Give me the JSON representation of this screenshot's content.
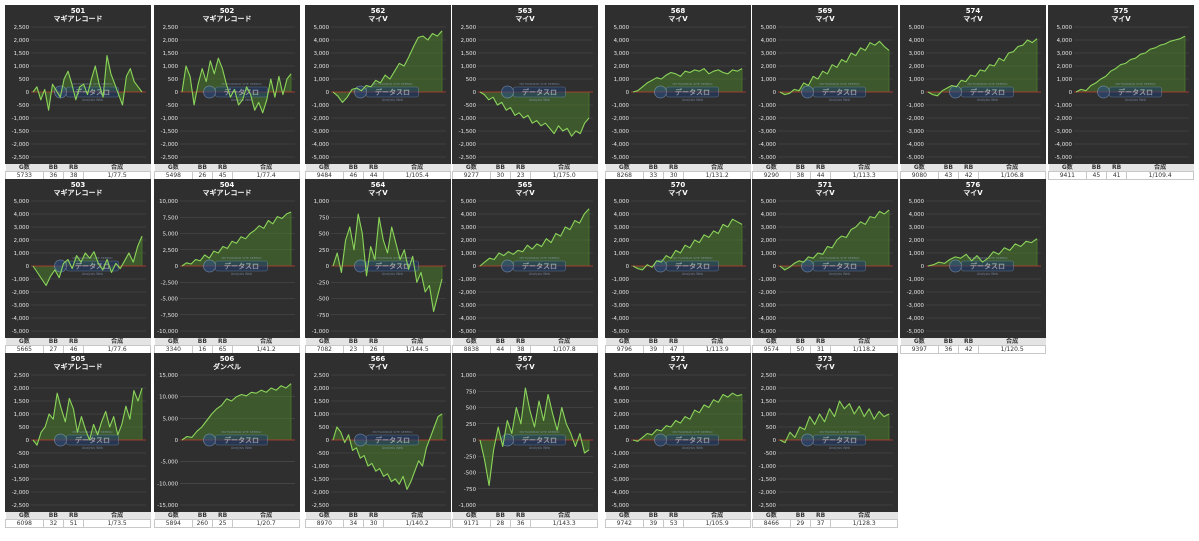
{
  "colors": {
    "panel_bg": "#2f2f2f",
    "grid": "#505050",
    "line": "#8bd45a",
    "fill": "#4a7a2c",
    "zero": "#c0392b",
    "title": "#ffffff"
  },
  "watermark": {
    "top": "MUTSURIBAR SITE SEEEKO",
    "main": "データスロ",
    "sub": "Analysis Web"
  },
  "stats_headers": {
    "g": "G数",
    "bb": "BB",
    "rb": "RB",
    "combined": "合成"
  },
  "chart_data": [
    {
      "type": "line",
      "number": "501",
      "machine": "マギアレコード",
      "yticks": [
        2500,
        2000,
        1500,
        1000,
        500,
        0,
        -500,
        -1000,
        -1500,
        -2000,
        -2500
      ],
      "ylim": [
        -2500,
        2500
      ],
      "stats": {
        "g": "5733",
        "bb": "36",
        "rb": "38",
        "combined": "1/77.5"
      },
      "y": [
        0,
        200,
        -300,
        100,
        -700,
        300,
        50,
        -200,
        500,
        800,
        300,
        -300,
        200,
        300,
        -100,
        500,
        1000,
        300,
        -200,
        1400,
        700,
        300,
        -100,
        -500,
        600,
        900,
        400,
        200,
        0
      ]
    },
    {
      "type": "line",
      "number": "502",
      "machine": "マギアレコード",
      "yticks": [
        2500,
        2000,
        1500,
        1000,
        500,
        0,
        -500,
        -1000,
        -1500,
        -2000,
        -2500
      ],
      "ylim": [
        -2500,
        2500
      ],
      "stats": {
        "g": "5498",
        "bb": "26",
        "rb": "45",
        "combined": "1/77.4"
      },
      "y": [
        0,
        1000,
        600,
        -500,
        300,
        900,
        400,
        1200,
        700,
        1300,
        900,
        300,
        -200,
        100,
        -500,
        -300,
        200,
        -100,
        -700,
        -400,
        -800,
        -300,
        500,
        -200,
        600,
        -100,
        500,
        700
      ]
    },
    {
      "type": "line",
      "number": "562",
      "machine": "マイV",
      "yticks": [
        5000,
        4000,
        3000,
        2000,
        1000,
        0,
        -1000,
        -2000,
        -3000,
        -4000,
        -5000
      ],
      "ylim": [
        -5000,
        5000
      ],
      "stats": {
        "g": "9484",
        "bb": "46",
        "rb": "44",
        "combined": "1/105.4"
      },
      "y": [
        0,
        -300,
        -800,
        -400,
        200,
        300,
        100,
        500,
        400,
        900,
        700,
        1300,
        1000,
        1600,
        2200,
        2000,
        2700,
        3500,
        4200,
        4300,
        4000,
        4500,
        4300,
        4700
      ]
    },
    {
      "type": "line",
      "number": "563",
      "machine": "マイV",
      "yticks": [
        2500,
        2000,
        1500,
        1000,
        500,
        0,
        -500,
        -1000,
        -1500,
        -2000,
        -2500
      ],
      "ylim": [
        -2500,
        2500
      ],
      "stats": {
        "g": "9277",
        "bb": "30",
        "rb": "23",
        "combined": "1/175.0"
      },
      "y": [
        0,
        -100,
        -300,
        -200,
        -500,
        -400,
        -700,
        -600,
        -900,
        -800,
        -1000,
        -900,
        -1200,
        -1100,
        -1300,
        -1200,
        -1400,
        -1600,
        -1300,
        -1500,
        -1400,
        -1700,
        -1500,
        -1600,
        -1200,
        -1000
      ]
    },
    {
      "type": "line",
      "number": "568",
      "machine": "マイV",
      "yticks": [
        5000,
        4000,
        3000,
        2000,
        1000,
        0,
        -1000,
        -2000,
        -3000,
        -4000,
        -5000
      ],
      "ylim": [
        -5000,
        5000
      ],
      "stats": {
        "g": "8268",
        "bb": "33",
        "rb": "30",
        "combined": "1/131.2"
      },
      "y": [
        0,
        100,
        400,
        700,
        900,
        1100,
        1000,
        1300,
        1500,
        1400,
        1200,
        1600,
        1500,
        1700,
        1600,
        1800,
        1400,
        1600,
        1700,
        1500,
        1400,
        1700,
        1600,
        1800
      ]
    },
    {
      "type": "line",
      "number": "569",
      "machine": "マイV",
      "yticks": [
        5000,
        4000,
        3000,
        2000,
        1000,
        0,
        -1000,
        -2000,
        -3000,
        -4000,
        -5000
      ],
      "ylim": [
        -5000,
        5000
      ],
      "stats": {
        "g": "9290",
        "bb": "38",
        "rb": "44",
        "combined": "1/113.3"
      },
      "y": [
        0,
        -200,
        -100,
        200,
        100,
        700,
        500,
        1200,
        1000,
        1600,
        1400,
        2100,
        1900,
        2500,
        2300,
        3000,
        2800,
        3400,
        3200,
        3800,
        3600,
        3900,
        3500,
        3200
      ]
    },
    {
      "type": "line",
      "number": "574",
      "machine": "マイV",
      "yticks": [
        5000,
        4000,
        3000,
        2000,
        1000,
        0,
        -1000,
        -2000,
        -3000,
        -4000,
        -5000
      ],
      "ylim": [
        -5000,
        5000
      ],
      "stats": {
        "g": "9080",
        "bb": "43",
        "rb": "42",
        "combined": "1/106.8"
      },
      "y": [
        0,
        -200,
        -300,
        100,
        300,
        500,
        400,
        900,
        800,
        1300,
        1200,
        1700,
        1600,
        2100,
        2000,
        2600,
        2400,
        3000,
        3100,
        3500,
        3600,
        4000,
        3800,
        4100
      ]
    },
    {
      "type": "line",
      "number": "575",
      "machine": "マイV",
      "yticks": [
        5000,
        4000,
        3000,
        2000,
        1000,
        0,
        -1000,
        -2000,
        -3000,
        -4000,
        -5000
      ],
      "ylim": [
        -5000,
        5000
      ],
      "stats": {
        "g": "9411",
        "bb": "45",
        "rb": "41",
        "combined": "1/109.4"
      },
      "y": [
        0,
        200,
        100,
        500,
        700,
        1000,
        1200,
        1600,
        1800,
        2100,
        2200,
        2500,
        2600,
        2900,
        3000,
        3300,
        3400,
        3600,
        3700,
        3900,
        4000,
        4100,
        4300
      ]
    },
    {
      "type": "line",
      "number": "503",
      "machine": "マギアレコード",
      "yticks": [
        5000,
        4000,
        3000,
        2000,
        1000,
        0,
        -1000,
        -2000,
        -3000,
        -4000,
        -5000
      ],
      "ylim": [
        -5000,
        5000
      ],
      "stats": {
        "g": "5665",
        "bb": "27",
        "rb": "46",
        "combined": "1/77.6"
      },
      "y": [
        0,
        -500,
        -1000,
        -1500,
        -800,
        -300,
        -900,
        200,
        500,
        -200,
        800,
        300,
        1000,
        600,
        1100,
        200,
        -300,
        500,
        -500,
        200,
        -200,
        400,
        1000,
        300,
        1500,
        2300
      ]
    },
    {
      "type": "line",
      "number": "504",
      "machine": "マギアレコード",
      "yticks": [
        10000,
        7500,
        5000,
        2500,
        0,
        -2500,
        -5000,
        -7500,
        -10000
      ],
      "ylim": [
        -10000,
        10000
      ],
      "stats": {
        "g": "3340",
        "bb": "16",
        "rb": "65",
        "combined": "1/41.2"
      },
      "y": [
        0,
        500,
        300,
        1000,
        800,
        1700,
        1200,
        2300,
        2000,
        3000,
        2700,
        3800,
        3500,
        4500,
        4200,
        5000,
        5500,
        6200,
        5800,
        7000,
        6500,
        7600,
        7300,
        8000,
        8300
      ]
    },
    {
      "type": "line",
      "number": "564",
      "machine": "マイV",
      "yticks": [
        1000,
        750,
        500,
        250,
        0,
        -250,
        -500,
        -750,
        -1000
      ],
      "ylim": [
        -1000,
        1000
      ],
      "stats": {
        "g": "7082",
        "bb": "23",
        "rb": "26",
        "combined": "1/144.5"
      },
      "y": [
        0,
        200,
        -100,
        400,
        600,
        250,
        800,
        500,
        -150,
        300,
        100,
        750,
        400,
        200,
        600,
        350,
        100,
        250,
        -50,
        150,
        -250,
        -100,
        -400,
        -300,
        -700,
        -450,
        -200
      ]
    },
    {
      "type": "line",
      "number": "565",
      "machine": "マイV",
      "yticks": [
        5000,
        4000,
        3000,
        2000,
        1000,
        0,
        -1000,
        -2000,
        -3000,
        -4000,
        -5000
      ],
      "ylim": [
        -5000,
        5000
      ],
      "stats": {
        "g": "8838",
        "bb": "44",
        "rb": "38",
        "combined": "1/107.8"
      },
      "y": [
        0,
        300,
        600,
        500,
        1000,
        800,
        1100,
        900,
        1200,
        1100,
        1600,
        1300,
        1700,
        1500,
        2100,
        1800,
        2500,
        2300,
        3000,
        2800,
        3500,
        3300,
        4000,
        4400
      ]
    },
    {
      "type": "line",
      "number": "570",
      "machine": "マイV",
      "yticks": [
        5000,
        4000,
        3000,
        2000,
        1000,
        0,
        -1000,
        -2000,
        -3000,
        -4000,
        -5000
      ],
      "ylim": [
        -5000,
        5000
      ],
      "stats": {
        "g": "9796",
        "bb": "39",
        "rb": "47",
        "combined": "1/113.9"
      },
      "y": [
        0,
        -200,
        -300,
        100,
        -100,
        400,
        300,
        800,
        600,
        1200,
        1000,
        1600,
        1400,
        2000,
        1800,
        2400,
        2200,
        2700,
        2500,
        3200,
        3000,
        3600,
        3400,
        3200
      ]
    },
    {
      "type": "line",
      "number": "571",
      "machine": "マイV",
      "yticks": [
        5000,
        4000,
        3000,
        2000,
        1000,
        0,
        -1000,
        -2000,
        -3000,
        -4000,
        -5000
      ],
      "ylim": [
        -5000,
        5000
      ],
      "stats": {
        "g": "9574",
        "bb": "50",
        "rb": "31",
        "combined": "1/118.2"
      },
      "y": [
        0,
        -300,
        -100,
        200,
        400,
        300,
        700,
        600,
        1000,
        900,
        1500,
        1400,
        2000,
        2300,
        2200,
        2800,
        3000,
        3400,
        3200,
        3800,
        3700,
        4200,
        4000,
        4300
      ]
    },
    {
      "type": "line",
      "number": "576",
      "machine": "マイV",
      "yticks": [
        5000,
        4000,
        3000,
        2000,
        1000,
        0,
        -1000,
        -2000,
        -3000,
        -4000,
        -5000
      ],
      "ylim": [
        -5000,
        5000
      ],
      "stats": {
        "g": "9397",
        "bb": "36",
        "rb": "42",
        "combined": "1/120.5"
      },
      "y": [
        0,
        100,
        300,
        200,
        500,
        700,
        600,
        900,
        400,
        800,
        300,
        600,
        1100,
        900,
        1400,
        1200,
        1700,
        1500,
        1900,
        1800,
        2100
      ]
    },
    {
      "type": "line",
      "number": "505",
      "machine": "マギアレコード",
      "yticks": [
        2500,
        2000,
        1500,
        1000,
        500,
        0,
        -500,
        -1000,
        -1500,
        -2000,
        -2500
      ],
      "ylim": [
        -2500,
        2500
      ],
      "stats": {
        "g": "6098",
        "bb": "32",
        "rb": "51",
        "combined": "1/73.5"
      },
      "y": [
        0,
        -200,
        300,
        500,
        1000,
        800,
        1800,
        1200,
        700,
        1600,
        1200,
        300,
        900,
        400,
        0,
        600,
        200,
        700,
        1100,
        500,
        900,
        200,
        600,
        1300,
        800,
        1900,
        1500,
        2000
      ]
    },
    {
      "type": "line",
      "number": "506",
      "machine": "ダンベル",
      "yticks": [
        15000,
        10000,
        5000,
        0,
        -5000,
        -10000,
        -15000
      ],
      "ylim": [
        -15000,
        15000
      ],
      "stats": {
        "g": "5894",
        "bb": "260",
        "rb": "25",
        "combined": "1/20.7"
      },
      "y": [
        0,
        800,
        600,
        2000,
        3000,
        4500,
        6000,
        7200,
        8000,
        9500,
        9000,
        10000,
        10500,
        10200,
        11000,
        10800,
        11500,
        11000,
        12000,
        11500,
        12500,
        12000,
        13000
      ]
    },
    {
      "type": "line",
      "number": "566",
      "machine": "マイV",
      "yticks": [
        2500,
        2000,
        1500,
        1000,
        500,
        0,
        -500,
        -1000,
        -1500,
        -2000,
        -2500
      ],
      "ylim": [
        -2500,
        2500
      ],
      "stats": {
        "g": "8970",
        "bb": "34",
        "rb": "30",
        "combined": "1/140.2"
      },
      "y": [
        0,
        500,
        300,
        -100,
        200,
        -400,
        -300,
        -700,
        -600,
        -1000,
        -900,
        -1200,
        -1100,
        -1400,
        -1300,
        -1600,
        -1500,
        -1700,
        -1400,
        -1900,
        -1600,
        -1200,
        -800,
        -1000,
        -300,
        100,
        500,
        900,
        1000
      ]
    },
    {
      "type": "line",
      "number": "567",
      "machine": "マイV",
      "yticks": [
        1000,
        750,
        500,
        250,
        0,
        -250,
        -500,
        -750,
        -1000
      ],
      "ylim": [
        -1000,
        1000
      ],
      "stats": {
        "g": "9171",
        "bb": "28",
        "rb": "36",
        "combined": "1/143.3"
      },
      "y": [
        0,
        -300,
        -700,
        -150,
        200,
        -100,
        300,
        100,
        500,
        250,
        800,
        450,
        200,
        600,
        300,
        700,
        400,
        150,
        500,
        250,
        100,
        -100,
        100,
        -200,
        -150
      ]
    },
    {
      "type": "line",
      "number": "572",
      "machine": "マイV",
      "yticks": [
        5000,
        4000,
        3000,
        2000,
        1000,
        0,
        -1000,
        -2000,
        -3000,
        -4000,
        -5000
      ],
      "ylim": [
        -5000,
        5000
      ],
      "stats": {
        "g": "9742",
        "bb": "39",
        "rb": "53",
        "combined": "1/105.9"
      },
      "y": [
        0,
        -100,
        200,
        500,
        400,
        800,
        700,
        1100,
        1000,
        1500,
        1300,
        1800,
        1600,
        2300,
        2100,
        2700,
        2500,
        3100,
        2900,
        3500,
        3300,
        3600,
        3400,
        3500
      ]
    },
    {
      "type": "line",
      "number": "573",
      "machine": "マイV",
      "yticks": [
        2500,
        2000,
        1500,
        1000,
        500,
        0,
        -500,
        -1000,
        -1500,
        -2000,
        -2500
      ],
      "ylim": [
        -2500,
        2500
      ],
      "stats": {
        "g": "8466",
        "bb": "29",
        "rb": "37",
        "combined": "1/128.3"
      },
      "y": [
        0,
        -100,
        300,
        100,
        500,
        400,
        900,
        600,
        1000,
        700,
        1200,
        900,
        1500,
        1200,
        1400,
        1000,
        1300,
        900,
        1200,
        800,
        1100,
        900,
        1000
      ]
    }
  ]
}
